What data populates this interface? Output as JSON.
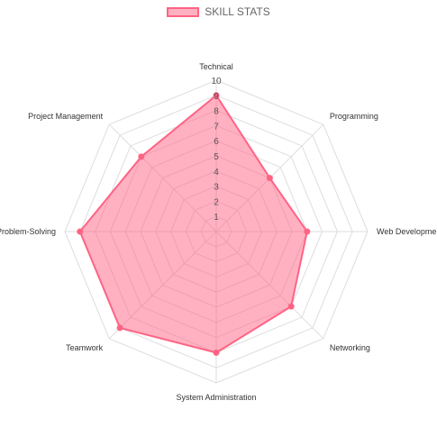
{
  "chart_data": {
    "type": "radar",
    "legend_position": "top",
    "scale_max": 10,
    "scale_min": 0,
    "tick_labels": [
      "1",
      "2",
      "3",
      "4",
      "5",
      "6",
      "7",
      "8",
      "9",
      "10"
    ],
    "categories": [
      "Technical",
      "Programming",
      "Web Development",
      "Networking",
      "System Administration",
      "Teamwork",
      "Problem-Solving",
      "Project Management"
    ],
    "series": [
      {
        "name": "SKILL STATS",
        "values": [
          9,
          5,
          6,
          7,
          8,
          9,
          9,
          7
        ],
        "color": "#ff6384",
        "fill": "rgba(255,99,132,0.5)"
      }
    ],
    "grid": true
  }
}
